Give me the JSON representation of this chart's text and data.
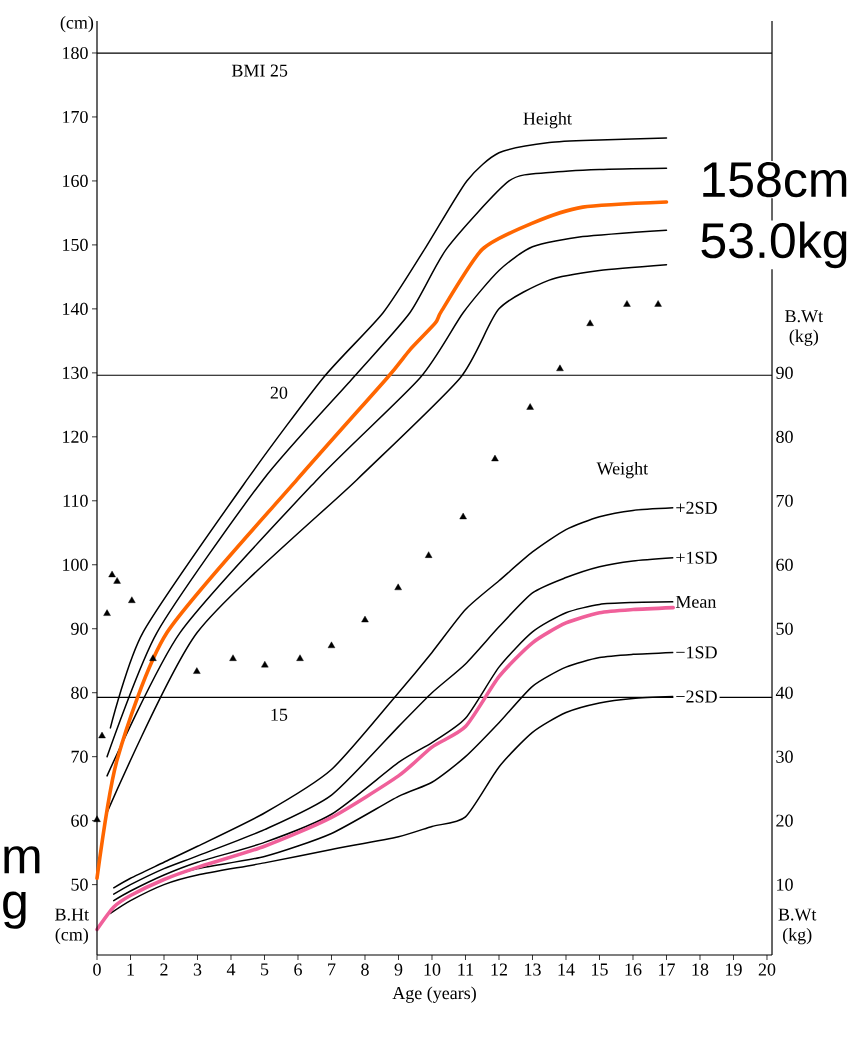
{
  "chart_data": {
    "type": "line",
    "xlabel": "Age (years)",
    "ylabel": "B.Ht (cm)",
    "y2label": "B.Wt (kg)",
    "xlim": [
      0,
      20.15
    ],
    "xticks": [
      0,
      1,
      2,
      3,
      4,
      5,
      6,
      7,
      8,
      9,
      10,
      11,
      12,
      13,
      14,
      15,
      16,
      17,
      18,
      19,
      20
    ],
    "ylim": [
      39,
      185
    ],
    "yticks": [
      50,
      60,
      70,
      80,
      90,
      100,
      110,
      120,
      130,
      140,
      150,
      160,
      170,
      180
    ],
    "y2lim": [
      -1,
      145
    ],
    "y2ticks": [
      10,
      20,
      30,
      40,
      50,
      60,
      70,
      80,
      90
    ],
    "y3lim": [
      11,
      25.5
    ],
    "y3ticks": [
      {
        "value": 25,
        "label": "BMI 25"
      },
      20,
      15
    ],
    "grid": false,
    "ref_lines": [
      {
        "axis": "y3",
        "value": 25,
        "color": "#000000"
      },
      {
        "axis": "y3",
        "value": 20,
        "color": "#000000"
      },
      {
        "axis": "y3",
        "value": 15,
        "color": "#000000"
      }
    ],
    "annotations": [
      "Height",
      "Weight",
      "(cm)",
      "B.Wt (kg)",
      "158cm",
      "53.0kg",
      "m",
      "g"
    ],
    "series": [
      {
        "color": "#000000",
        "x": [
          0.4,
          1.37,
          4.48,
          6.75,
          8.54,
          9.8,
          11.04,
          12,
          13.5,
          15,
          17
        ],
        "values": [
          74.5,
          89.4,
          113.3,
          129.2,
          139.4,
          149.5,
          160,
          164.4,
          166,
          166.4,
          166.7
        ]
      },
      {
        "color": "#000000",
        "x": [
          0.3,
          1.79,
          4.96,
          7.64,
          9.34,
          10.45,
          12.3,
          13.5,
          15,
          17
        ],
        "values": [
          70,
          89.4,
          113.3,
          129.2,
          139.4,
          149.5,
          160,
          161.3,
          161.8,
          162
        ]
      },
      {
        "color": "#000000",
        "x": [
          0.3,
          2.48,
          6.57,
          9.64,
          10.93,
          12,
          13,
          14.5,
          17
        ],
        "values": [
          67,
          89.4,
          113.3,
          129.2,
          139.4,
          146,
          149.7,
          151.3,
          152.3
        ]
      },
      {
        "color": "#000000",
        "x": [
          0.3,
          2.99,
          7.76,
          10.84,
          12,
          13.5,
          15,
          17
        ],
        "values": [
          61.3,
          89.4,
          113.3,
          129.2,
          140,
          144.5,
          146,
          146.9
        ]
      },
      {
        "color": "#ff6600",
        "x": [
          0,
          0.6,
          2.09,
          5.97,
          8.66,
          9.34,
          10.1,
          10.3,
          11.5,
          13,
          14.5,
          17
        ],
        "values": [
          51,
          69.5,
          89.4,
          113.3,
          129.2,
          133.6,
          137.8,
          139.8,
          149.3,
          153.4,
          155.9,
          156.7
        ]
      },
      {
        "name": "+2SD",
        "axis": "y2",
        "color": "#000000",
        "x": [
          0.5,
          1,
          2,
          3,
          5,
          7,
          9,
          10,
          11,
          12,
          13,
          14,
          15,
          16,
          17.2
        ],
        "values": [
          9.5,
          11,
          13.5,
          16,
          21.2,
          28,
          40,
          46.3,
          53,
          57.5,
          62,
          65.5,
          67.5,
          68.5,
          68.9
        ]
      },
      {
        "name": "+1SD",
        "axis": "y2",
        "color": "#000000",
        "x": [
          0.5,
          1,
          2,
          3,
          5,
          7,
          9,
          10,
          11,
          12,
          13,
          14,
          15,
          16,
          17.2
        ],
        "values": [
          8.5,
          10,
          12.5,
          14.5,
          18.6,
          24,
          34.7,
          40,
          44.5,
          50.3,
          55.6,
          58,
          59.7,
          60.6,
          61.1
        ]
      },
      {
        "name": "Mean",
        "axis": "y2",
        "color": "#000000",
        "x": [
          0.5,
          1,
          2,
          3,
          5,
          7,
          9,
          10,
          11,
          12,
          13,
          14,
          15,
          16,
          17.2
        ],
        "values": [
          7.5,
          9,
          11.5,
          13.5,
          16.6,
          21,
          29.1,
          32.2,
          36,
          44,
          49.5,
          52.5,
          53.8,
          54.1,
          54.2
        ]
      },
      {
        "name": "−1SD",
        "axis": "y2",
        "color": "#000000",
        "x": [
          0.5,
          1,
          2,
          3,
          5,
          7,
          9,
          10,
          11,
          12,
          13,
          14,
          15,
          16,
          17.2
        ],
        "values": [
          6.5,
          8.3,
          10.8,
          12.5,
          14.4,
          18,
          23.8,
          26,
          30,
          35.3,
          41,
          44,
          45.5,
          46,
          46.3
        ]
      },
      {
        "name": "−2SD",
        "axis": "y2",
        "color": "#000000",
        "x": [
          0.4,
          1,
          2,
          3,
          5,
          7,
          9,
          10,
          11,
          12,
          13,
          14,
          15,
          16,
          17.2
        ],
        "values": [
          5.5,
          7.5,
          10,
          11.5,
          13.4,
          15.5,
          17.5,
          19.1,
          20.6,
          28.4,
          33.8,
          36.9,
          38.4,
          39.1,
          39.4
        ]
      },
      {
        "axis": "y2",
        "color": "#f0609a",
        "x": [
          0,
          0.5,
          1,
          2,
          3,
          5,
          7,
          9,
          10,
          11,
          12,
          13,
          14,
          15,
          16,
          17.2
        ],
        "values": [
          3,
          6.5,
          8.3,
          10.8,
          12.7,
          16,
          20.5,
          27,
          31.5,
          34.7,
          42.5,
          47.8,
          50.9,
          52.5,
          53,
          53.3
        ]
      },
      {
        "type": "scatter",
        "axis": "y3",
        "marker": "triangle",
        "color": "#000000",
        "x": [
          0,
          0.15,
          0.3,
          0.45,
          0.6,
          1.04,
          1.67,
          2.98,
          4.06,
          5.01,
          6.06,
          7,
          8,
          8.99,
          9.9,
          10.93,
          11.88,
          12.93,
          13.82,
          14.72,
          15.82,
          16.75
        ],
        "values": [
          13.1,
          14.4,
          16.3,
          16.9,
          16.8,
          16.5,
          15.6,
          15.4,
          15.6,
          15.5,
          15.6,
          15.8,
          16.2,
          16.7,
          17.2,
          17.8,
          18.7,
          19.5,
          20.1,
          20.8,
          21.1,
          21.1
        ]
      }
    ]
  }
}
